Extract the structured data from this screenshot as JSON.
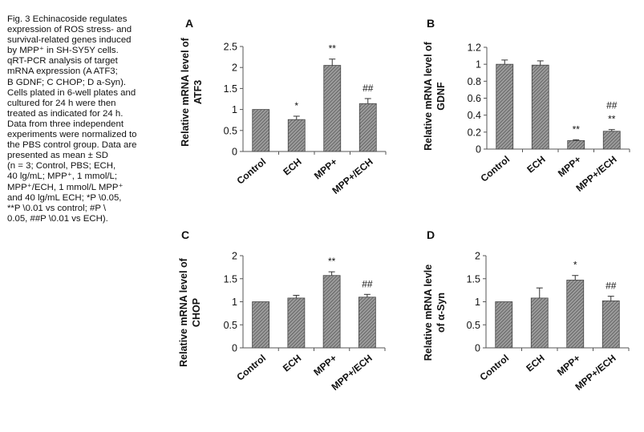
{
  "caption": [
    "Fig. 3  Echinacoside regulates",
    "expression of ROS stress- and",
    "survival-related genes induced",
    "by MPP⁺ in SH-SY5Y cells.",
    "qRT-PCR  analysis of target",
    "mRNA expression (A ATF3;",
    "B GDNF; C CHOP; D a-Syn).",
    "Cells plated in 6-well plates and",
    "cultured for 24 h were then",
    "treated as indicated for 24 h.",
    "Data from three independent",
    "experiments were normalized to",
    "the PBS control group. Data are",
    "presented  as mean ± SD",
    "(n = 3; Control, PBS; ECH,",
    "40 lg/mL; MPP⁺, 1 mmol/L;",
    "MPP⁺/ECH, 1 mmol/L MPP⁺",
    "and 40 lg/mL ECH; *P \\0.05,",
    "**P \\0.01 vs control; #P \\",
    "0.05, ##P \\0.01 vs ECH)."
  ],
  "colors": {
    "bar_fill": "#8a8a8a",
    "bar_stroke": "#444444",
    "axis": "#555555"
  },
  "chart_data": [
    {
      "type": "bar",
      "panel": "A",
      "ylabel_lines": [
        "Relative mRNA level of",
        "ATF3"
      ],
      "categories": [
        "Control",
        "ECH",
        "MPP+",
        "MPP+/ECH"
      ],
      "values": [
        1.0,
        0.76,
        2.05,
        1.14
      ],
      "errors": [
        0.0,
        0.08,
        0.15,
        0.12
      ],
      "annotations": [
        [
          "",
          ""
        ],
        [
          "*",
          ""
        ],
        [
          "**",
          ""
        ],
        [
          "##",
          ""
        ]
      ],
      "ylim": [
        0,
        2.5
      ],
      "yticks": [
        0,
        0.5,
        1,
        1.5,
        2,
        2.5
      ],
      "ytick_labels": [
        "0",
        "0.5",
        "1",
        "1.5",
        "2",
        "2.5"
      ]
    },
    {
      "type": "bar",
      "panel": "B",
      "ylabel_lines": [
        "Relative mRNA level of",
        "GDNF"
      ],
      "categories": [
        "Control",
        "ECH",
        "MPP+",
        "MPP+/ECH"
      ],
      "values": [
        1.0,
        0.99,
        0.1,
        0.21
      ],
      "errors": [
        0.05,
        0.05,
        0.01,
        0.02
      ],
      "annotations": [
        [
          "",
          ""
        ],
        [
          "",
          ""
        ],
        [
          "**",
          ""
        ],
        [
          "**",
          "##"
        ]
      ],
      "ylim": [
        0,
        1.2
      ],
      "yticks": [
        0,
        0.2,
        0.4,
        0.6,
        0.8,
        1,
        1.2
      ],
      "ytick_labels": [
        "0",
        "0.2",
        "0.4",
        "0.6",
        "0.8",
        "1",
        "1.2"
      ]
    },
    {
      "type": "bar",
      "panel": "C",
      "ylabel_lines": [
        "Relative mRNA level of",
        "CHOP"
      ],
      "categories": [
        "Control",
        "ECH",
        "MPP+",
        "MPP+/ECH"
      ],
      "values": [
        1.0,
        1.08,
        1.57,
        1.1
      ],
      "errors": [
        0.0,
        0.06,
        0.08,
        0.06
      ],
      "annotations": [
        [
          "",
          ""
        ],
        [
          "",
          ""
        ],
        [
          "**",
          ""
        ],
        [
          "##",
          ""
        ]
      ],
      "ylim": [
        0,
        2
      ],
      "yticks": [
        0,
        0.5,
        1,
        1.5,
        2
      ],
      "ytick_labels": [
        "0",
        "0.5",
        "1",
        "1.5",
        "2"
      ]
    },
    {
      "type": "bar",
      "panel": "D",
      "ylabel_lines": [
        "Relative mRNA levle",
        "of α-Syn"
      ],
      "categories": [
        "Control",
        "ECH",
        "MPP+",
        "MPP+/ECH"
      ],
      "values": [
        1.0,
        1.08,
        1.47,
        1.02
      ],
      "errors": [
        0.0,
        0.22,
        0.1,
        0.1
      ],
      "annotations": [
        [
          "",
          ""
        ],
        [
          "",
          ""
        ],
        [
          "*",
          ""
        ],
        [
          "##",
          ""
        ]
      ],
      "ylim": [
        0,
        2
      ],
      "yticks": [
        0,
        0.5,
        1,
        1.5,
        2
      ],
      "ytick_labels": [
        "0",
        "0.5",
        "1",
        "1.5",
        "2"
      ]
    }
  ]
}
